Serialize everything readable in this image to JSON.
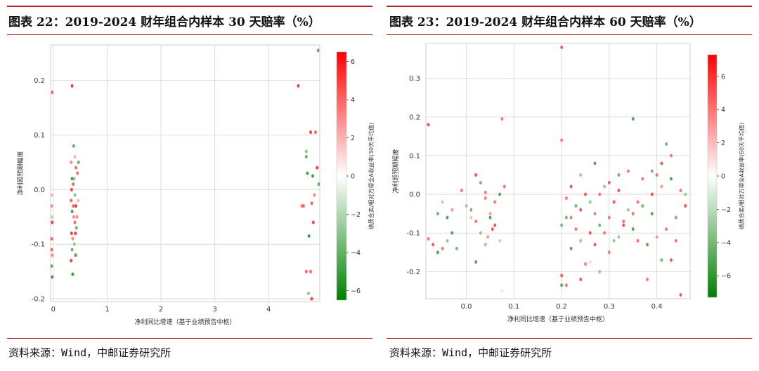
{
  "charts": [
    {
      "title": "图表 22：2019-2024 财年组合内样本 30 天赔率（%）",
      "source": "资料来源：Wind，中邮证券研究所",
      "chart_data": {
        "type": "scatter",
        "xlabel": "净利同比增速（基于业绩预告中枢）",
        "ylabel": "净利超预期幅度",
        "colorbar_label": "绩质合卖/相对万得全A收益率(30天平均值)",
        "xlim": [
          -0.05,
          4.95
        ],
        "ylim": [
          -0.205,
          0.265
        ],
        "xticks": [
          0,
          1,
          2,
          3,
          4
        ],
        "yticks": [
          -0.2,
          -0.1,
          0.0,
          0.1,
          0.2
        ],
        "clim": [
          -6.5,
          6.5
        ],
        "cticks": [
          -6,
          -4,
          -2,
          0,
          2,
          4,
          6
        ],
        "grid": true,
        "colormap": [
          "#008000",
          "#ffffff",
          "#ff0000"
        ],
        "points": [
          [
            -0.02,
            0.178,
            4
          ],
          [
            -0.03,
            -0.03,
            3
          ],
          [
            -0.02,
            -0.06,
            5
          ],
          [
            -0.03,
            -0.09,
            4
          ],
          [
            -0.02,
            -0.12,
            3
          ],
          [
            -0.03,
            -0.14,
            -4
          ],
          [
            -0.02,
            -0.16,
            -5
          ],
          [
            -0.03,
            -0.01,
            2
          ],
          [
            -0.02,
            -0.05,
            -2
          ],
          [
            -0.03,
            -0.11,
            4
          ],
          [
            0.35,
            0.19,
            5
          ],
          [
            0.38,
            0.08,
            -4
          ],
          [
            0.4,
            0.06,
            2
          ],
          [
            0.42,
            0.04,
            4
          ],
          [
            0.33,
            0.05,
            3
          ],
          [
            0.35,
            0.02,
            -5
          ],
          [
            0.37,
            0.01,
            4
          ],
          [
            0.4,
            -0.01,
            -3
          ],
          [
            0.42,
            -0.03,
            5
          ],
          [
            0.33,
            -0.02,
            4
          ],
          [
            0.35,
            -0.04,
            -5
          ],
          [
            0.38,
            -0.05,
            3
          ],
          [
            0.4,
            -0.06,
            4
          ],
          [
            0.43,
            -0.07,
            -4
          ],
          [
            0.34,
            -0.08,
            5
          ],
          [
            0.36,
            -0.09,
            3
          ],
          [
            0.39,
            -0.1,
            -3
          ],
          [
            0.41,
            -0.12,
            4
          ],
          [
            0.33,
            -0.13,
            5
          ],
          [
            0.36,
            -0.155,
            -5
          ],
          [
            0.42,
            -0.12,
            -4
          ],
          [
            0.45,
            0.03,
            4
          ],
          [
            0.46,
            -0.02,
            2
          ],
          [
            0.47,
            0.05,
            -4
          ],
          [
            0.34,
            0.0,
            5
          ],
          [
            0.37,
            -0.03,
            4
          ],
          [
            0.39,
            0.02,
            -3
          ],
          [
            0.41,
            -0.08,
            5
          ],
          [
            0.44,
            -0.05,
            3
          ],
          [
            0.35,
            -0.11,
            -4
          ],
          [
            4.55,
            0.19,
            5
          ],
          [
            4.65,
            -0.03,
            4
          ],
          [
            4.7,
            0.07,
            -3
          ],
          [
            4.72,
            0.03,
            -5
          ],
          [
            4.78,
            0.105,
            5
          ],
          [
            4.8,
            -0.025,
            4
          ],
          [
            4.82,
            0.025,
            -5
          ],
          [
            4.85,
            -0.01,
            3
          ],
          [
            4.87,
            0.105,
            4
          ],
          [
            4.9,
            0.04,
            5
          ],
          [
            4.93,
            0.01,
            -4
          ],
          [
            4.92,
            0.255,
            -4
          ],
          [
            4.75,
            -0.085,
            -5
          ],
          [
            4.78,
            -0.15,
            4
          ],
          [
            4.8,
            -0.2,
            5
          ],
          [
            4.7,
            -0.15,
            4
          ],
          [
            4.74,
            -0.19,
            -3
          ],
          [
            4.83,
            -0.06,
            5
          ],
          [
            4.62,
            -0.03,
            4
          ],
          [
            4.7,
            0.06,
            -4
          ]
        ]
      }
    },
    {
      "title": "图表 23：2019-2024 财年组合内样本 60 天赔率（%）",
      "source": "资料来源：Wind，中邮证券研究所",
      "chart_data": {
        "type": "scatter",
        "xlabel": "净利同比增速（基于业绩预告中枢）",
        "ylabel": "净利超预期幅度",
        "colorbar_label": "绩质合卖/相对万得全A收益率(60天平均值)",
        "xlim": [
          -0.085,
          0.47
        ],
        "ylim": [
          -0.27,
          0.39
        ],
        "xticks": [
          0.0,
          0.1,
          0.2,
          0.3,
          0.4
        ],
        "yticks": [
          -0.2,
          -0.1,
          0.0,
          0.1,
          0.2,
          0.3
        ],
        "clim": [
          -7.3,
          7.3
        ],
        "cticks": [
          -6,
          -4,
          -2,
          0,
          2,
          4,
          6
        ],
        "grid": true,
        "colormap": [
          "#008000",
          "#ffffff",
          "#ff0000"
        ],
        "points": [
          [
            -0.08,
            0.18,
            5
          ],
          [
            -0.08,
            -0.115,
            4
          ],
          [
            -0.07,
            -0.13,
            5
          ],
          [
            -0.06,
            -0.15,
            -5
          ],
          [
            -0.05,
            -0.14,
            4
          ],
          [
            -0.04,
            -0.12,
            -3
          ],
          [
            -0.03,
            -0.1,
            -5
          ],
          [
            -0.06,
            -0.05,
            -4
          ],
          [
            -0.05,
            -0.02,
            2
          ],
          [
            -0.04,
            -0.06,
            -5
          ],
          [
            -0.03,
            -0.04,
            3
          ],
          [
            -0.01,
            0.01,
            4
          ],
          [
            -0.02,
            -0.14,
            -4
          ],
          [
            0.0,
            -0.03,
            -3
          ],
          [
            0.01,
            -0.06,
            2
          ],
          [
            0.02,
            0.05,
            5
          ],
          [
            0.03,
            0.03,
            -4
          ],
          [
            0.04,
            -0.01,
            4
          ],
          [
            0.05,
            -0.05,
            3
          ],
          [
            0.06,
            -0.08,
            5
          ],
          [
            0.07,
            0.0,
            -5
          ],
          [
            0.02,
            -0.07,
            4
          ],
          [
            0.03,
            -0.1,
            -3
          ],
          [
            0.04,
            -0.13,
            3
          ],
          [
            0.05,
            -0.06,
            -5
          ],
          [
            0.06,
            -0.02,
            4
          ],
          [
            0.07,
            -0.12,
            2
          ],
          [
            0.08,
            0.02,
            4
          ],
          [
            0.075,
            0.195,
            4
          ],
          [
            0.075,
            -0.25,
            1
          ],
          [
            0.02,
            -0.175,
            -5
          ],
          [
            0.04,
            0.005,
            4
          ],
          [
            0.01,
            -0.04,
            -4
          ],
          [
            0.055,
            -0.09,
            5
          ],
          [
            0.045,
            -0.11,
            3
          ],
          [
            0.2,
            0.38,
            5
          ],
          [
            0.2,
            0.14,
            4
          ],
          [
            0.2,
            -0.21,
            5
          ],
          [
            0.2,
            -0.235,
            -5
          ],
          [
            0.21,
            -0.235,
            4
          ],
          [
            0.24,
            -0.22,
            5
          ],
          [
            0.25,
            -0.18,
            4
          ],
          [
            0.26,
            -0.175,
            1
          ],
          [
            0.28,
            -0.2,
            -3
          ],
          [
            0.3,
            -0.15,
            4
          ],
          [
            0.35,
            0.195,
            -5
          ],
          [
            0.34,
            0.06,
            4
          ],
          [
            0.32,
            0.05,
            -4
          ],
          [
            0.3,
            0.03,
            5
          ],
          [
            0.28,
            0.0,
            4
          ],
          [
            0.26,
            -0.02,
            -3
          ],
          [
            0.24,
            -0.04,
            5
          ],
          [
            0.22,
            -0.06,
            4
          ],
          [
            0.2,
            -0.08,
            -4
          ],
          [
            0.22,
            0.02,
            5
          ],
          [
            0.24,
            0.05,
            3
          ],
          [
            0.27,
            0.08,
            -5
          ],
          [
            0.29,
            -0.1,
            4
          ],
          [
            0.31,
            -0.12,
            -3
          ],
          [
            0.33,
            -0.08,
            5
          ],
          [
            0.35,
            -0.05,
            4
          ],
          [
            0.37,
            -0.03,
            -4
          ],
          [
            0.39,
            0.0,
            5
          ],
          [
            0.41,
            0.02,
            3
          ],
          [
            0.43,
            0.04,
            -5
          ],
          [
            0.45,
            0.01,
            4
          ],
          [
            0.46,
            -0.03,
            5
          ],
          [
            0.44,
            -0.06,
            -4
          ],
          [
            0.42,
            -0.09,
            4
          ],
          [
            0.4,
            -0.11,
            3
          ],
          [
            0.38,
            -0.13,
            -5
          ],
          [
            0.36,
            -0.02,
            4
          ],
          [
            0.34,
            -0.04,
            -3
          ],
          [
            0.32,
            0.01,
            5
          ],
          [
            0.3,
            -0.06,
            4
          ],
          [
            0.28,
            -0.08,
            -4
          ],
          [
            0.26,
            -0.1,
            5
          ],
          [
            0.24,
            -0.12,
            3
          ],
          [
            0.22,
            -0.14,
            -5
          ],
          [
            0.21,
            -0.01,
            4
          ],
          [
            0.23,
            -0.03,
            -4
          ],
          [
            0.25,
            0.0,
            5
          ],
          [
            0.27,
            -0.05,
            4
          ],
          [
            0.29,
            0.02,
            -3
          ],
          [
            0.31,
            -0.02,
            5
          ],
          [
            0.33,
            -0.07,
            4
          ],
          [
            0.35,
            -0.09,
            -5
          ],
          [
            0.37,
            0.04,
            4
          ],
          [
            0.39,
            0.06,
            -4
          ],
          [
            0.41,
            0.08,
            5
          ],
          [
            0.43,
            0.1,
            4
          ],
          [
            0.42,
            0.13,
            -4
          ],
          [
            0.45,
            -0.26,
            5
          ],
          [
            0.43,
            -0.17,
            5
          ],
          [
            0.38,
            -0.22,
            4
          ],
          [
            0.41,
            -0.17,
            -4
          ],
          [
            0.36,
            -0.12,
            4
          ],
          [
            0.32,
            -0.11,
            -3
          ],
          [
            0.27,
            -0.13,
            5
          ],
          [
            0.23,
            -0.09,
            4
          ],
          [
            0.21,
            -0.06,
            -4
          ],
          [
            0.44,
            -0.12,
            4
          ],
          [
            0.46,
            0.0,
            -3
          ],
          [
            0.4,
            0.05,
            4
          ],
          [
            0.39,
            -0.05,
            -5
          ]
        ]
      }
    }
  ]
}
